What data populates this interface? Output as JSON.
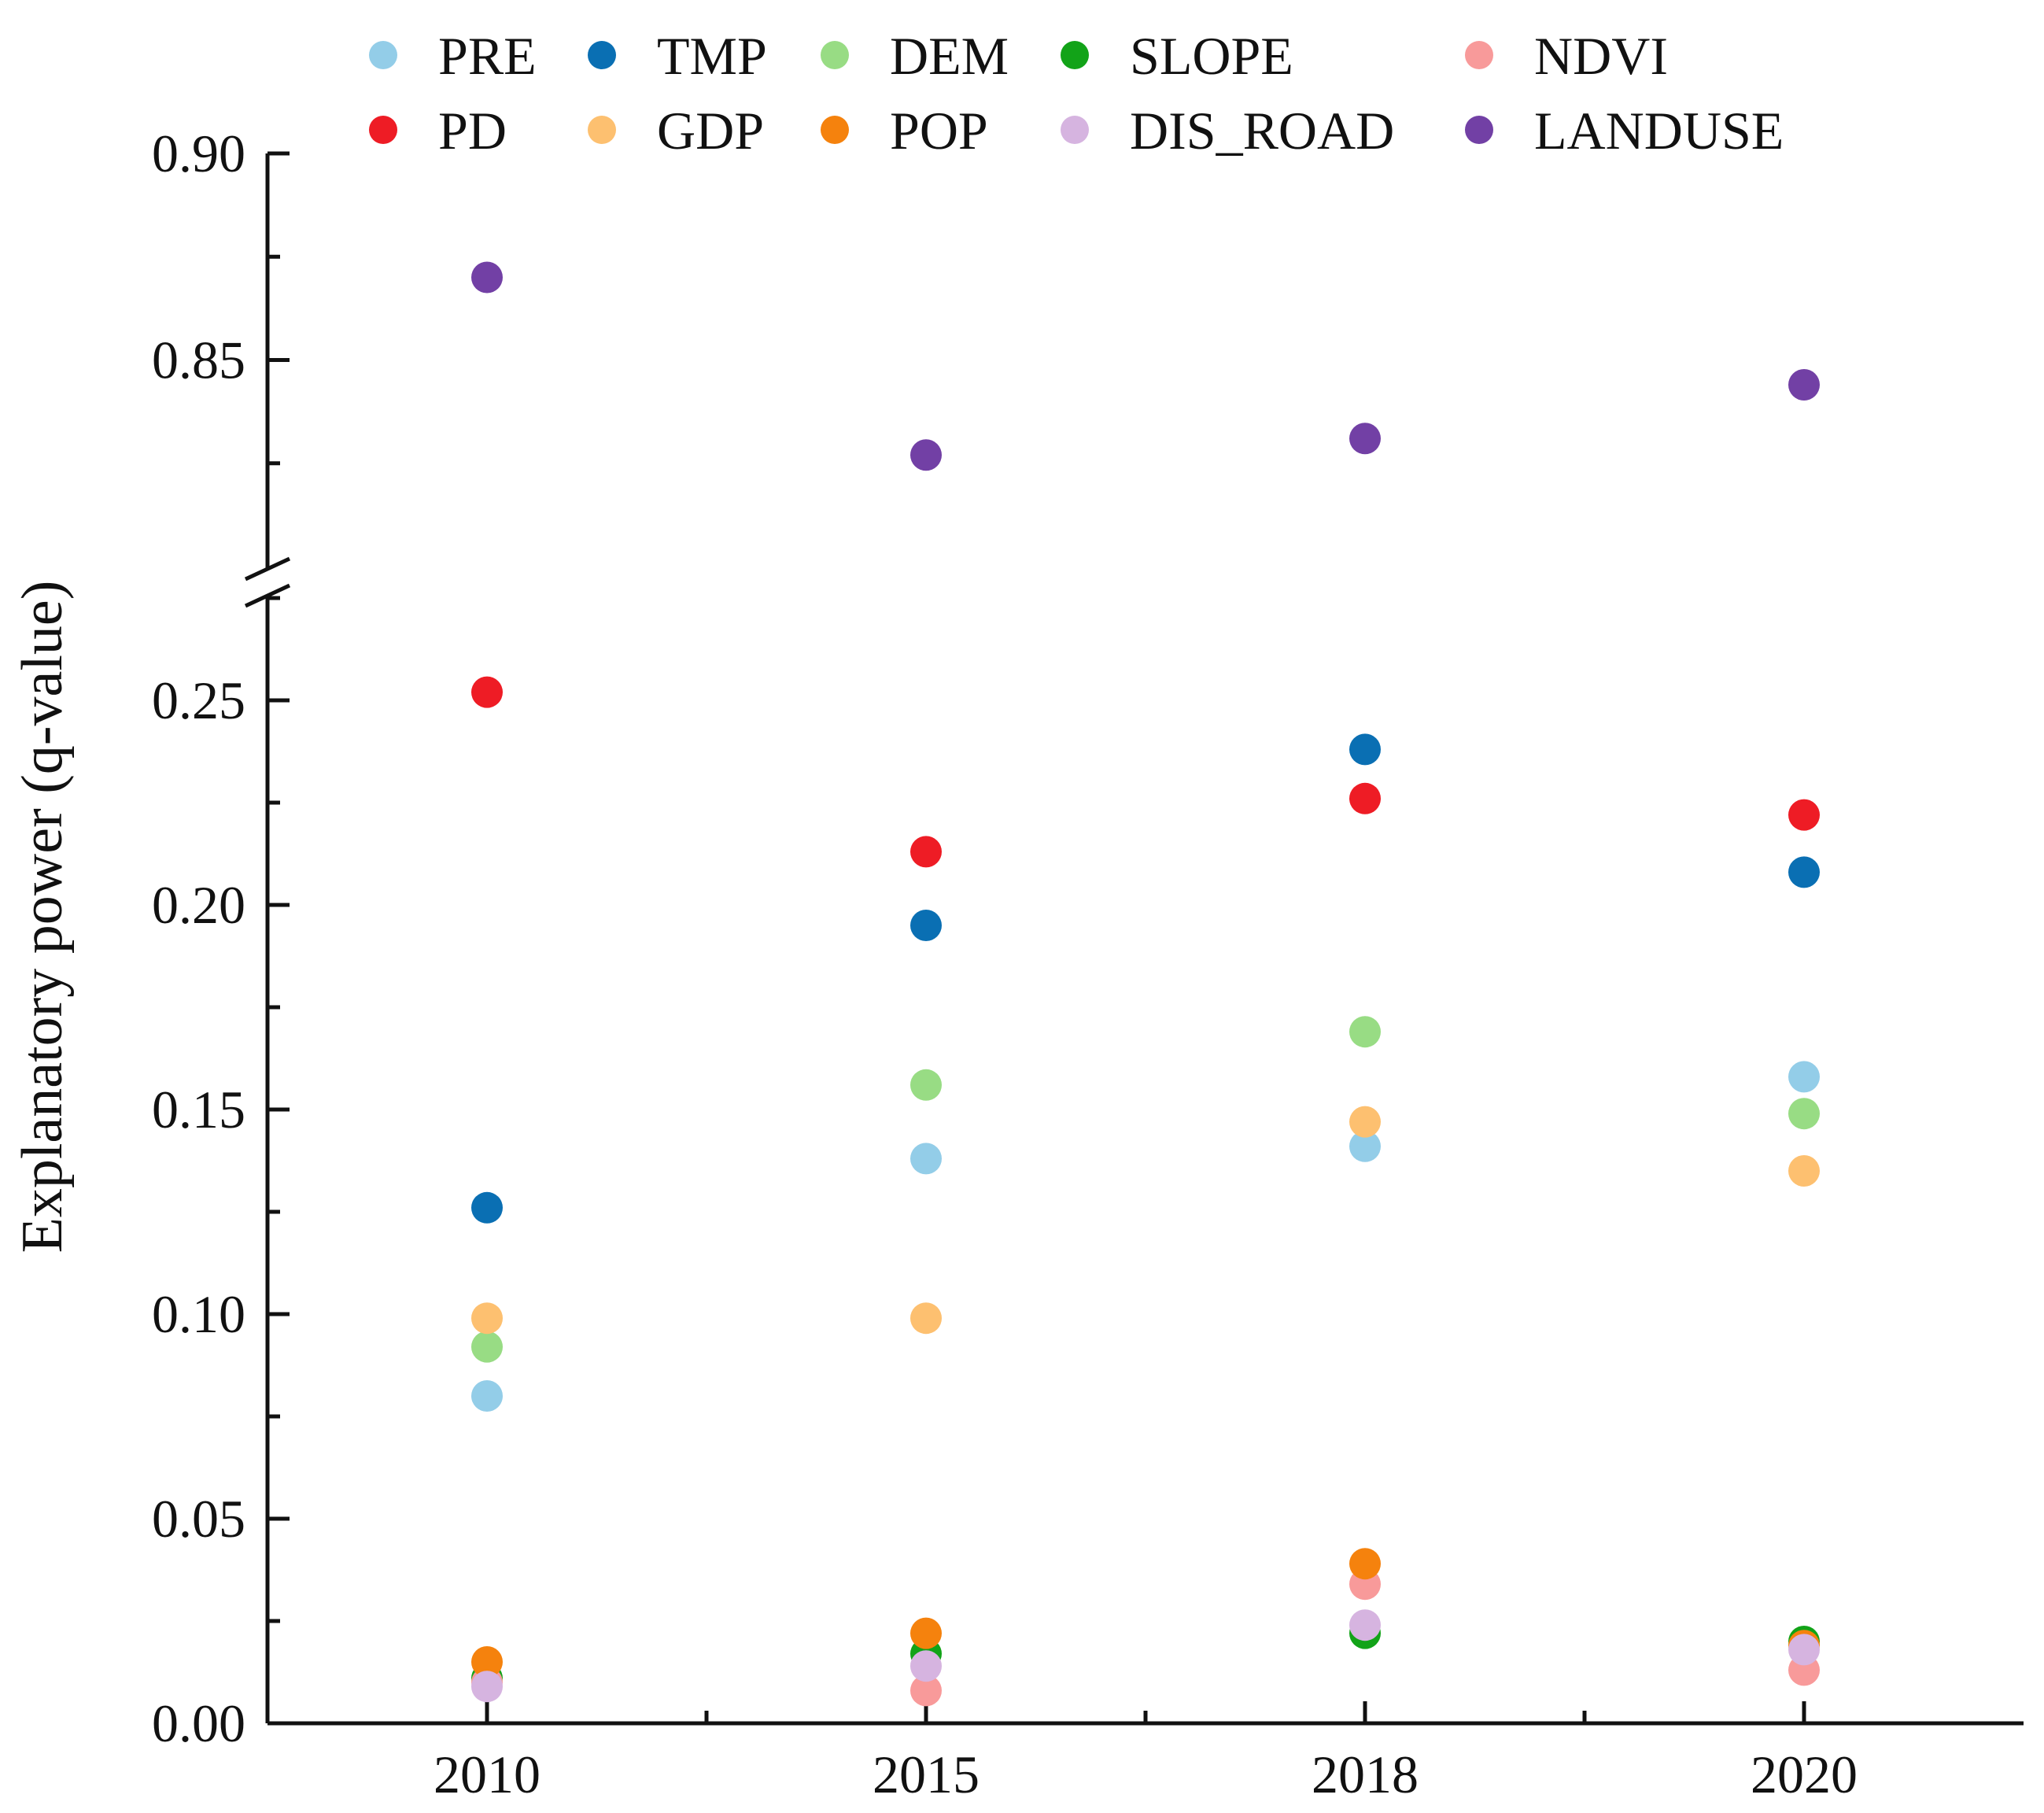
{
  "chart_data": {
    "type": "scatter",
    "title": "",
    "xlabel": "",
    "ylabel": "Explanatory power (q-value)",
    "categories": [
      "2010",
      "2015",
      "2018",
      "2020"
    ],
    "y_axis": {
      "broken": true,
      "lower_range": [
        0,
        0.275
      ],
      "upper_range": [
        0.8,
        0.9
      ],
      "lower_ticks": [
        "0.00",
        "0.05",
        "0.10",
        "0.15",
        "0.20",
        "0.25"
      ],
      "upper_ticks": [
        "0.85",
        "0.90"
      ]
    },
    "legend_position": "top",
    "series": [
      {
        "name": "PRE",
        "color": "#93cde8",
        "values": [
          0.08,
          0.138,
          0.141,
          0.158
        ]
      },
      {
        "name": "TMP",
        "color": "#0a6fb3",
        "values": [
          0.126,
          0.195,
          0.238,
          0.208
        ]
      },
      {
        "name": "DEM",
        "color": "#98dc84",
        "values": [
          0.092,
          0.156,
          0.169,
          0.149
        ]
      },
      {
        "name": "SLOPE",
        "color": "#12a318",
        "values": [
          0.011,
          0.017,
          0.022,
          0.02
        ]
      },
      {
        "name": "NDVI",
        "color": "#f89a9a",
        "values": [
          0.01,
          0.008,
          0.034,
          0.013
        ]
      },
      {
        "name": "PD",
        "color": "#ee1c25",
        "values": [
          0.252,
          0.213,
          0.226,
          0.222
        ]
      },
      {
        "name": "GDP",
        "color": "#fdc070",
        "values": [
          0.099,
          0.099,
          0.147,
          0.135
        ]
      },
      {
        "name": "POP",
        "color": "#f5820d",
        "values": [
          0.015,
          0.022,
          0.039,
          0.019
        ]
      },
      {
        "name": "DIS_ROAD",
        "color": "#d6b4e0",
        "values": [
          0.009,
          0.014,
          0.024,
          0.018
        ]
      },
      {
        "name": "LANDUSE",
        "color": "#7240a5",
        "values": [
          0.87,
          0.827,
          0.831,
          0.844
        ]
      }
    ]
  }
}
